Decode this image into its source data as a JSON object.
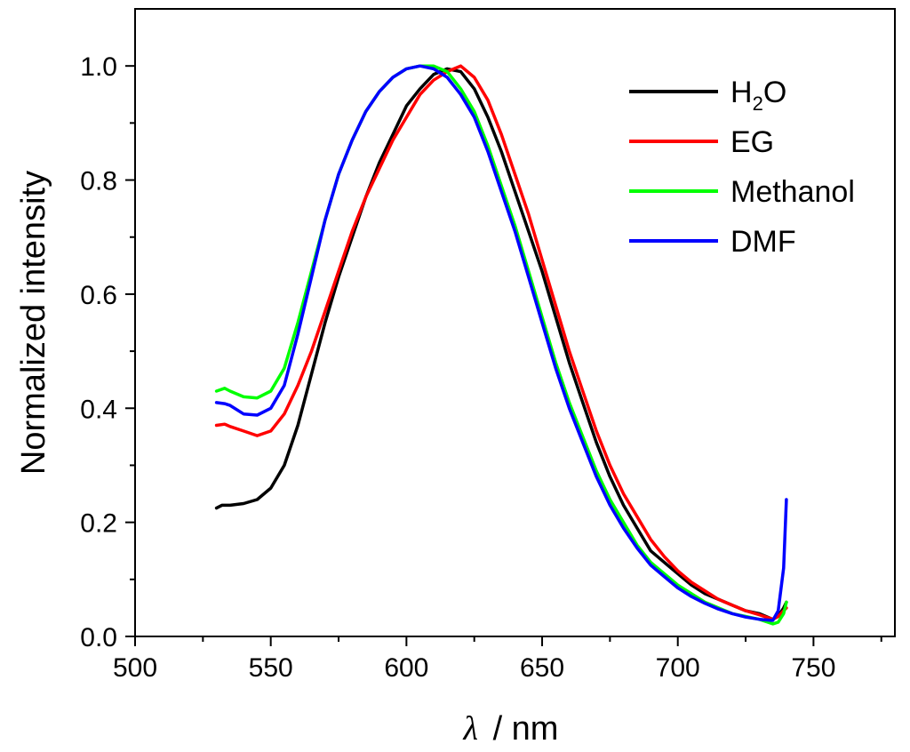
{
  "chart_data": {
    "type": "line",
    "title": "",
    "xlabel": "λ / nm",
    "xlabel_symbol": "λ",
    "xlabel_unit": "/ nm",
    "ylabel": "Normalized intensity",
    "xlim": [
      500,
      780
    ],
    "ylim": [
      0,
      1.1
    ],
    "x_ticks": [
      500,
      550,
      600,
      650,
      700,
      750
    ],
    "x_tick_labels": [
      "500",
      "550",
      "600",
      "650",
      "700",
      "750"
    ],
    "x_minor_ticks": [
      525,
      575,
      625,
      675,
      725,
      775
    ],
    "y_ticks": [
      0,
      0.2,
      0.4,
      0.6,
      0.8,
      1.0
    ],
    "y_tick_labels": [
      "0.0",
      "0.2",
      "0.4",
      "0.6",
      "0.8",
      "1.0"
    ],
    "y_minor_ticks": [
      0.1,
      0.3,
      0.5,
      0.7,
      0.9
    ],
    "grid": false,
    "legend": {
      "position": "top-right",
      "entries": [
        {
          "label": "H",
          "sub": "2",
          "suffix": "O",
          "color": "#000000"
        },
        {
          "label": "EG",
          "sub": "",
          "suffix": "",
          "color": "#ff0000"
        },
        {
          "label": "Methanol",
          "sub": "",
          "suffix": "",
          "color": "#00ff00"
        },
        {
          "label": "DMF",
          "sub": "",
          "suffix": "",
          "color": "#0000ff"
        }
      ]
    },
    "series": [
      {
        "name": "H2O",
        "color": "#000000",
        "x": [
          530,
          532,
          535,
          540,
          545,
          550,
          555,
          560,
          565,
          570,
          575,
          580,
          585,
          590,
          595,
          600,
          605,
          610,
          615,
          620,
          625,
          630,
          635,
          640,
          645,
          650,
          655,
          660,
          665,
          670,
          675,
          680,
          685,
          690,
          695,
          700,
          705,
          710,
          715,
          720,
          725,
          730,
          735,
          737,
          739,
          740
        ],
        "y": [
          0.225,
          0.23,
          0.23,
          0.233,
          0.24,
          0.26,
          0.3,
          0.37,
          0.46,
          0.55,
          0.63,
          0.7,
          0.77,
          0.83,
          0.88,
          0.93,
          0.96,
          0.985,
          0.995,
          0.99,
          0.96,
          0.91,
          0.85,
          0.78,
          0.71,
          0.64,
          0.56,
          0.48,
          0.41,
          0.34,
          0.28,
          0.23,
          0.19,
          0.15,
          0.13,
          0.11,
          0.09,
          0.075,
          0.065,
          0.055,
          0.045,
          0.04,
          0.03,
          0.035,
          0.05,
          0.06
        ]
      },
      {
        "name": "EG",
        "color": "#ff0000",
        "x": [
          530,
          533,
          535,
          540,
          545,
          550,
          555,
          560,
          565,
          570,
          575,
          580,
          585,
          590,
          595,
          600,
          605,
          610,
          615,
          620,
          625,
          630,
          635,
          640,
          645,
          650,
          655,
          660,
          665,
          670,
          675,
          680,
          685,
          690,
          695,
          700,
          705,
          710,
          715,
          720,
          725,
          730,
          735,
          737,
          739,
          740
        ],
        "y": [
          0.37,
          0.372,
          0.368,
          0.36,
          0.352,
          0.36,
          0.39,
          0.44,
          0.5,
          0.57,
          0.64,
          0.71,
          0.77,
          0.82,
          0.87,
          0.91,
          0.95,
          0.975,
          0.99,
          1.0,
          0.98,
          0.94,
          0.88,
          0.81,
          0.74,
          0.66,
          0.58,
          0.5,
          0.43,
          0.36,
          0.3,
          0.25,
          0.21,
          0.17,
          0.14,
          0.115,
          0.095,
          0.08,
          0.065,
          0.055,
          0.045,
          0.038,
          0.03,
          0.035,
          0.045,
          0.05
        ]
      },
      {
        "name": "Methanol",
        "color": "#00ff00",
        "x": [
          530,
          533,
          535,
          540,
          545,
          550,
          555,
          560,
          565,
          570,
          575,
          580,
          585,
          590,
          595,
          600,
          605,
          610,
          615,
          620,
          625,
          630,
          635,
          640,
          645,
          650,
          655,
          660,
          665,
          670,
          675,
          680,
          685,
          690,
          695,
          700,
          705,
          710,
          715,
          720,
          725,
          730,
          735,
          737,
          739,
          740
        ],
        "y": [
          0.43,
          0.435,
          0.43,
          0.42,
          0.418,
          0.43,
          0.47,
          0.55,
          0.64,
          0.73,
          0.81,
          0.87,
          0.92,
          0.955,
          0.98,
          0.995,
          1.0,
          1.0,
          0.99,
          0.96,
          0.92,
          0.86,
          0.79,
          0.72,
          0.64,
          0.56,
          0.48,
          0.41,
          0.35,
          0.29,
          0.24,
          0.2,
          0.16,
          0.13,
          0.11,
          0.09,
          0.075,
          0.06,
          0.05,
          0.04,
          0.035,
          0.03,
          0.022,
          0.025,
          0.04,
          0.06
        ]
      },
      {
        "name": "DMF",
        "color": "#0000ff",
        "x": [
          530,
          533,
          535,
          540,
          545,
          550,
          555,
          560,
          565,
          570,
          575,
          580,
          585,
          590,
          595,
          600,
          605,
          610,
          615,
          620,
          625,
          630,
          635,
          640,
          645,
          650,
          655,
          660,
          665,
          670,
          675,
          680,
          685,
          690,
          695,
          700,
          705,
          710,
          715,
          720,
          725,
          730,
          735,
          737,
          739,
          740
        ],
        "y": [
          0.41,
          0.408,
          0.405,
          0.39,
          0.388,
          0.4,
          0.44,
          0.53,
          0.63,
          0.73,
          0.81,
          0.87,
          0.92,
          0.955,
          0.98,
          0.995,
          1.0,
          0.995,
          0.98,
          0.95,
          0.91,
          0.85,
          0.78,
          0.71,
          0.63,
          0.55,
          0.47,
          0.4,
          0.34,
          0.28,
          0.23,
          0.19,
          0.155,
          0.125,
          0.105,
          0.085,
          0.07,
          0.058,
          0.048,
          0.04,
          0.034,
          0.03,
          0.028,
          0.045,
          0.12,
          0.24
        ]
      }
    ]
  }
}
